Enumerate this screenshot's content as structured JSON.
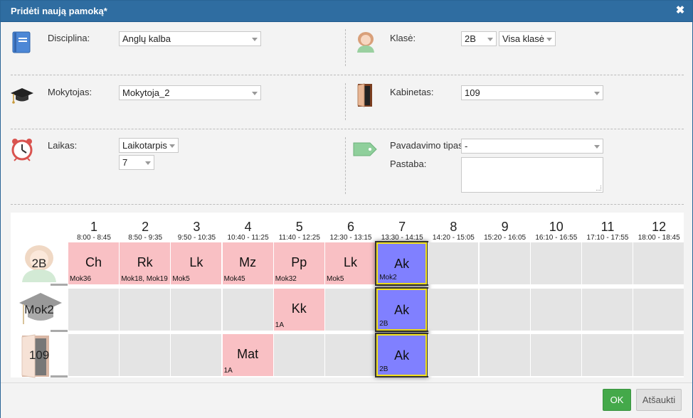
{
  "dialog": {
    "title": "Pridėti naują pamoką*",
    "close_icon": "close-icon"
  },
  "form": {
    "discipline": {
      "label": "Disciplina:",
      "value": "Anglų kalba",
      "icon": "book-icon"
    },
    "class": {
      "label": "Klasė:",
      "value": "2B",
      "group": "Visa klasė",
      "icon": "student-icon"
    },
    "teacher": {
      "label": "Mokytojas:",
      "value": "Mokytoja_2",
      "icon": "graduation-cap-icon"
    },
    "cabinet": {
      "label": "Kabinetas:",
      "value": "109",
      "icon": "door-icon"
    },
    "time": {
      "label": "Laikas:",
      "mode": "Laikotarpis",
      "period": "7",
      "icon": "alarm-clock-icon"
    },
    "replacement": {
      "label": "Pavadavimo tipas:",
      "value": "-",
      "icon": "tag-icon"
    },
    "note": {
      "label": "Pastaba:",
      "value": ""
    }
  },
  "schedule": {
    "periods": [
      {
        "num": "1",
        "time": "8:00 - 8:45"
      },
      {
        "num": "2",
        "time": "8:50 - 9:35"
      },
      {
        "num": "3",
        "time": "9:50 - 10:35"
      },
      {
        "num": "4",
        "time": "10:40 - 11:25"
      },
      {
        "num": "5",
        "time": "11:40 - 12:25"
      },
      {
        "num": "6",
        "time": "12:30 - 13:15"
      },
      {
        "num": "7",
        "time": "13:30 - 14:15"
      },
      {
        "num": "8",
        "time": "14:20 - 15:05"
      },
      {
        "num": "9",
        "time": "15:20 - 16:05"
      },
      {
        "num": "10",
        "time": "16:10 - 16:55"
      },
      {
        "num": "11",
        "time": "17:10 - 17:55"
      },
      {
        "num": "12",
        "time": "18:00 - 18:45"
      }
    ],
    "rows": [
      {
        "label": "2B",
        "icon": "student-icon",
        "cells": [
          {
            "subj": "Ch",
            "who": "Mok36",
            "state": "pink"
          },
          {
            "subj": "Rk",
            "who": "Mok18, Mok19",
            "state": "pink"
          },
          {
            "subj": "Lk",
            "who": "Mok5",
            "state": "pink"
          },
          {
            "subj": "Mz",
            "who": "Mok45",
            "state": "pink"
          },
          {
            "subj": "Pp",
            "who": "Mok32",
            "state": "pink"
          },
          {
            "subj": "Lk",
            "who": "Mok5",
            "state": "pink"
          },
          {
            "subj": "Ak",
            "who": "Mok2",
            "state": "blue"
          },
          {
            "subj": "",
            "who": "",
            "state": "empty"
          },
          {
            "subj": "",
            "who": "",
            "state": "empty"
          },
          {
            "subj": "",
            "who": "",
            "state": "empty"
          },
          {
            "subj": "",
            "who": "",
            "state": "empty"
          },
          {
            "subj": "",
            "who": "",
            "state": "empty"
          }
        ]
      },
      {
        "label": "Mok2",
        "icon": "graduation-cap-icon",
        "cells": [
          {
            "subj": "",
            "who": "",
            "state": "empty"
          },
          {
            "subj": "",
            "who": "",
            "state": "empty"
          },
          {
            "subj": "",
            "who": "",
            "state": "empty"
          },
          {
            "subj": "",
            "who": "",
            "state": "empty"
          },
          {
            "subj": "Kk",
            "who": "1A",
            "state": "pink"
          },
          {
            "subj": "",
            "who": "",
            "state": "empty"
          },
          {
            "subj": "Ak",
            "who": "2B",
            "state": "blue"
          },
          {
            "subj": "",
            "who": "",
            "state": "empty"
          },
          {
            "subj": "",
            "who": "",
            "state": "empty"
          },
          {
            "subj": "",
            "who": "",
            "state": "empty"
          },
          {
            "subj": "",
            "who": "",
            "state": "empty"
          },
          {
            "subj": "",
            "who": "",
            "state": "empty"
          }
        ]
      },
      {
        "label": "109",
        "icon": "door-icon",
        "cells": [
          {
            "subj": "",
            "who": "",
            "state": "empty"
          },
          {
            "subj": "",
            "who": "",
            "state": "empty"
          },
          {
            "subj": "",
            "who": "",
            "state": "empty"
          },
          {
            "subj": "Mat",
            "who": "1A",
            "state": "pink"
          },
          {
            "subj": "",
            "who": "",
            "state": "empty"
          },
          {
            "subj": "",
            "who": "",
            "state": "empty"
          },
          {
            "subj": "Ak",
            "who": "2B",
            "state": "blue"
          },
          {
            "subj": "",
            "who": "",
            "state": "empty"
          },
          {
            "subj": "",
            "who": "",
            "state": "empty"
          },
          {
            "subj": "",
            "who": "",
            "state": "empty"
          },
          {
            "subj": "",
            "who": "",
            "state": "empty"
          },
          {
            "subj": "",
            "who": "",
            "state": "empty"
          }
        ]
      }
    ]
  },
  "footer": {
    "ok_label": "OK",
    "cancel_label": "Atšaukti"
  },
  "colors": {
    "titlebar": "#2f6da1",
    "occupied": "#f9c0c4",
    "selected": "#8080ff",
    "selected_border": "#f3e21b",
    "ok": "#44a94a"
  }
}
